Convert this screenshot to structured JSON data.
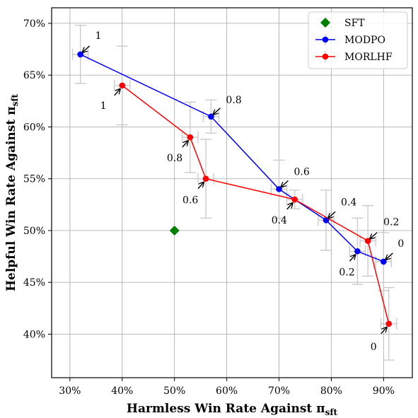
{
  "chart_data": {
    "type": "scatter",
    "xlabel": "Harmless Win Rate Against π",
    "xlabel_sub": "sft",
    "ylabel": "Helpful Win Rate Against π",
    "ylabel_sub": "sft",
    "xlim": [
      26.5,
      95.5
    ],
    "ylim": [
      35.8,
      71.5
    ],
    "xticks": [
      30,
      40,
      50,
      60,
      70,
      80,
      90
    ],
    "xtick_labels": [
      "30%",
      "40%",
      "50%",
      "60%",
      "70%",
      "80%",
      "90%"
    ],
    "yticks": [
      40,
      45,
      50,
      55,
      60,
      65,
      70
    ],
    "ytick_labels": [
      "40%",
      "45%",
      "50%",
      "55%",
      "60%",
      "65%",
      "70%"
    ],
    "grid": true,
    "legend_position": "top-right",
    "series": [
      {
        "name": "SFT",
        "color": "#008000",
        "marker": "diamond",
        "points": [
          {
            "x": 50,
            "y": 50
          }
        ]
      },
      {
        "name": "MODPO",
        "color": "#0000ff",
        "marker": "circle",
        "line": true,
        "points": [
          {
            "x": 32,
            "y": 67,
            "label": "1",
            "xerr": 1.5,
            "yerr": 2.8
          },
          {
            "x": 57,
            "y": 61,
            "label": "0.8",
            "xerr": 1.5,
            "yerr": 1.6
          },
          {
            "x": 70,
            "y": 54,
            "label": "0.6",
            "xerr": 1.5,
            "yerr": 2.8
          },
          {
            "x": 79,
            "y": 51,
            "label": "0.4",
            "xerr": 1.5,
            "yerr": 2.9
          },
          {
            "x": 85,
            "y": 48,
            "label": "0.2",
            "xerr": 1.5,
            "yerr": 3.2
          },
          {
            "x": 90,
            "y": 47,
            "label": "0",
            "xerr": 1.5,
            "yerr": 2.8
          }
        ]
      },
      {
        "name": "MORLHF",
        "color": "#ff0000",
        "marker": "circle",
        "line": true,
        "points": [
          {
            "x": 40,
            "y": 64,
            "label": "1",
            "xerr": 1.5,
            "yerr": 3.8
          },
          {
            "x": 53,
            "y": 59,
            "label": "0.8",
            "xerr": 1.5,
            "yerr": 3.4
          },
          {
            "x": 56,
            "y": 55,
            "label": "0.6",
            "xerr": 1.5,
            "yerr": 3.8
          },
          {
            "x": 73,
            "y": 53,
            "label": "0.4",
            "xerr": 1.5,
            "yerr": 0.9
          },
          {
            "x": 87,
            "y": 49,
            "label": "0.2",
            "xerr": 1.5,
            "yerr": 3.4
          },
          {
            "x": 91,
            "y": 41,
            "label": "0",
            "xerr": 1.5,
            "yerr": 3.5
          }
        ]
      }
    ]
  }
}
